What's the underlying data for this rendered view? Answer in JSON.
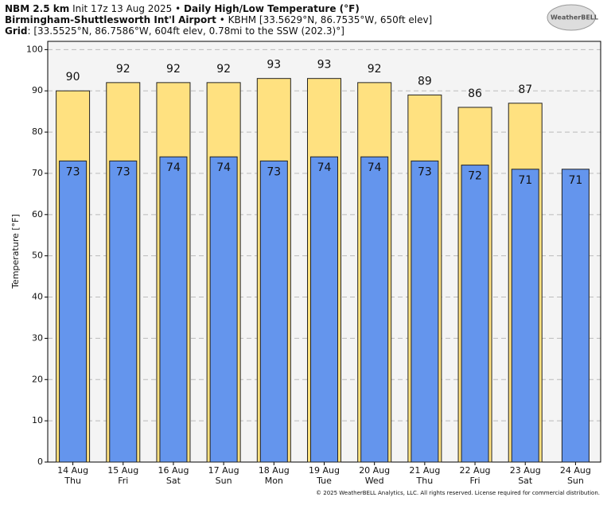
{
  "header": {
    "model": "NBM 2.5 km",
    "init": "Init 17z 13 Aug 2025 •",
    "title": "Daily High/Low Temperature (°F)",
    "station": "Birmingham-Shuttlesworth Int'l Airport",
    "station_info": "• KBHM [33.5629°N, 86.7535°W, 650ft elev]",
    "grid_label": "Grid",
    "grid_info": ": [33.5525°N, 86.7586°W, 604ft elev, 0.78mi to the SSW (202.3)°]",
    "logo": "WeatherBELL"
  },
  "footer": "© 2025 WeatherBELL Analytics, LLC. All rights reserved. License required for commercial distribution.",
  "chart_data": {
    "type": "bar",
    "y_label": "Temperature [°F]",
    "categories": [
      [
        "14 Aug",
        "Thu"
      ],
      [
        "15 Aug",
        "Fri"
      ],
      [
        "16 Aug",
        "Sat"
      ],
      [
        "17 Aug",
        "Sun"
      ],
      [
        "18 Aug",
        "Mon"
      ],
      [
        "19 Aug",
        "Tue"
      ],
      [
        "20 Aug",
        "Wed"
      ],
      [
        "21 Aug",
        "Thu"
      ],
      [
        "22 Aug",
        "Fri"
      ],
      [
        "23 Aug",
        "Sat"
      ],
      [
        "24 Aug",
        "Sun"
      ]
    ],
    "series": [
      {
        "name": "High",
        "color": "#ffe180",
        "values": [
          90,
          92,
          92,
          92,
          93,
          93,
          92,
          89,
          86,
          87,
          null
        ]
      },
      {
        "name": "Low",
        "color": "#6495ed",
        "values": [
          73,
          73,
          74,
          74,
          73,
          74,
          74,
          73,
          72,
          71,
          71
        ]
      }
    ],
    "ylim": [
      0,
      102
    ],
    "yticks": [
      0,
      10,
      20,
      30,
      40,
      50,
      60,
      70,
      80,
      90,
      100
    ],
    "grid": true
  }
}
